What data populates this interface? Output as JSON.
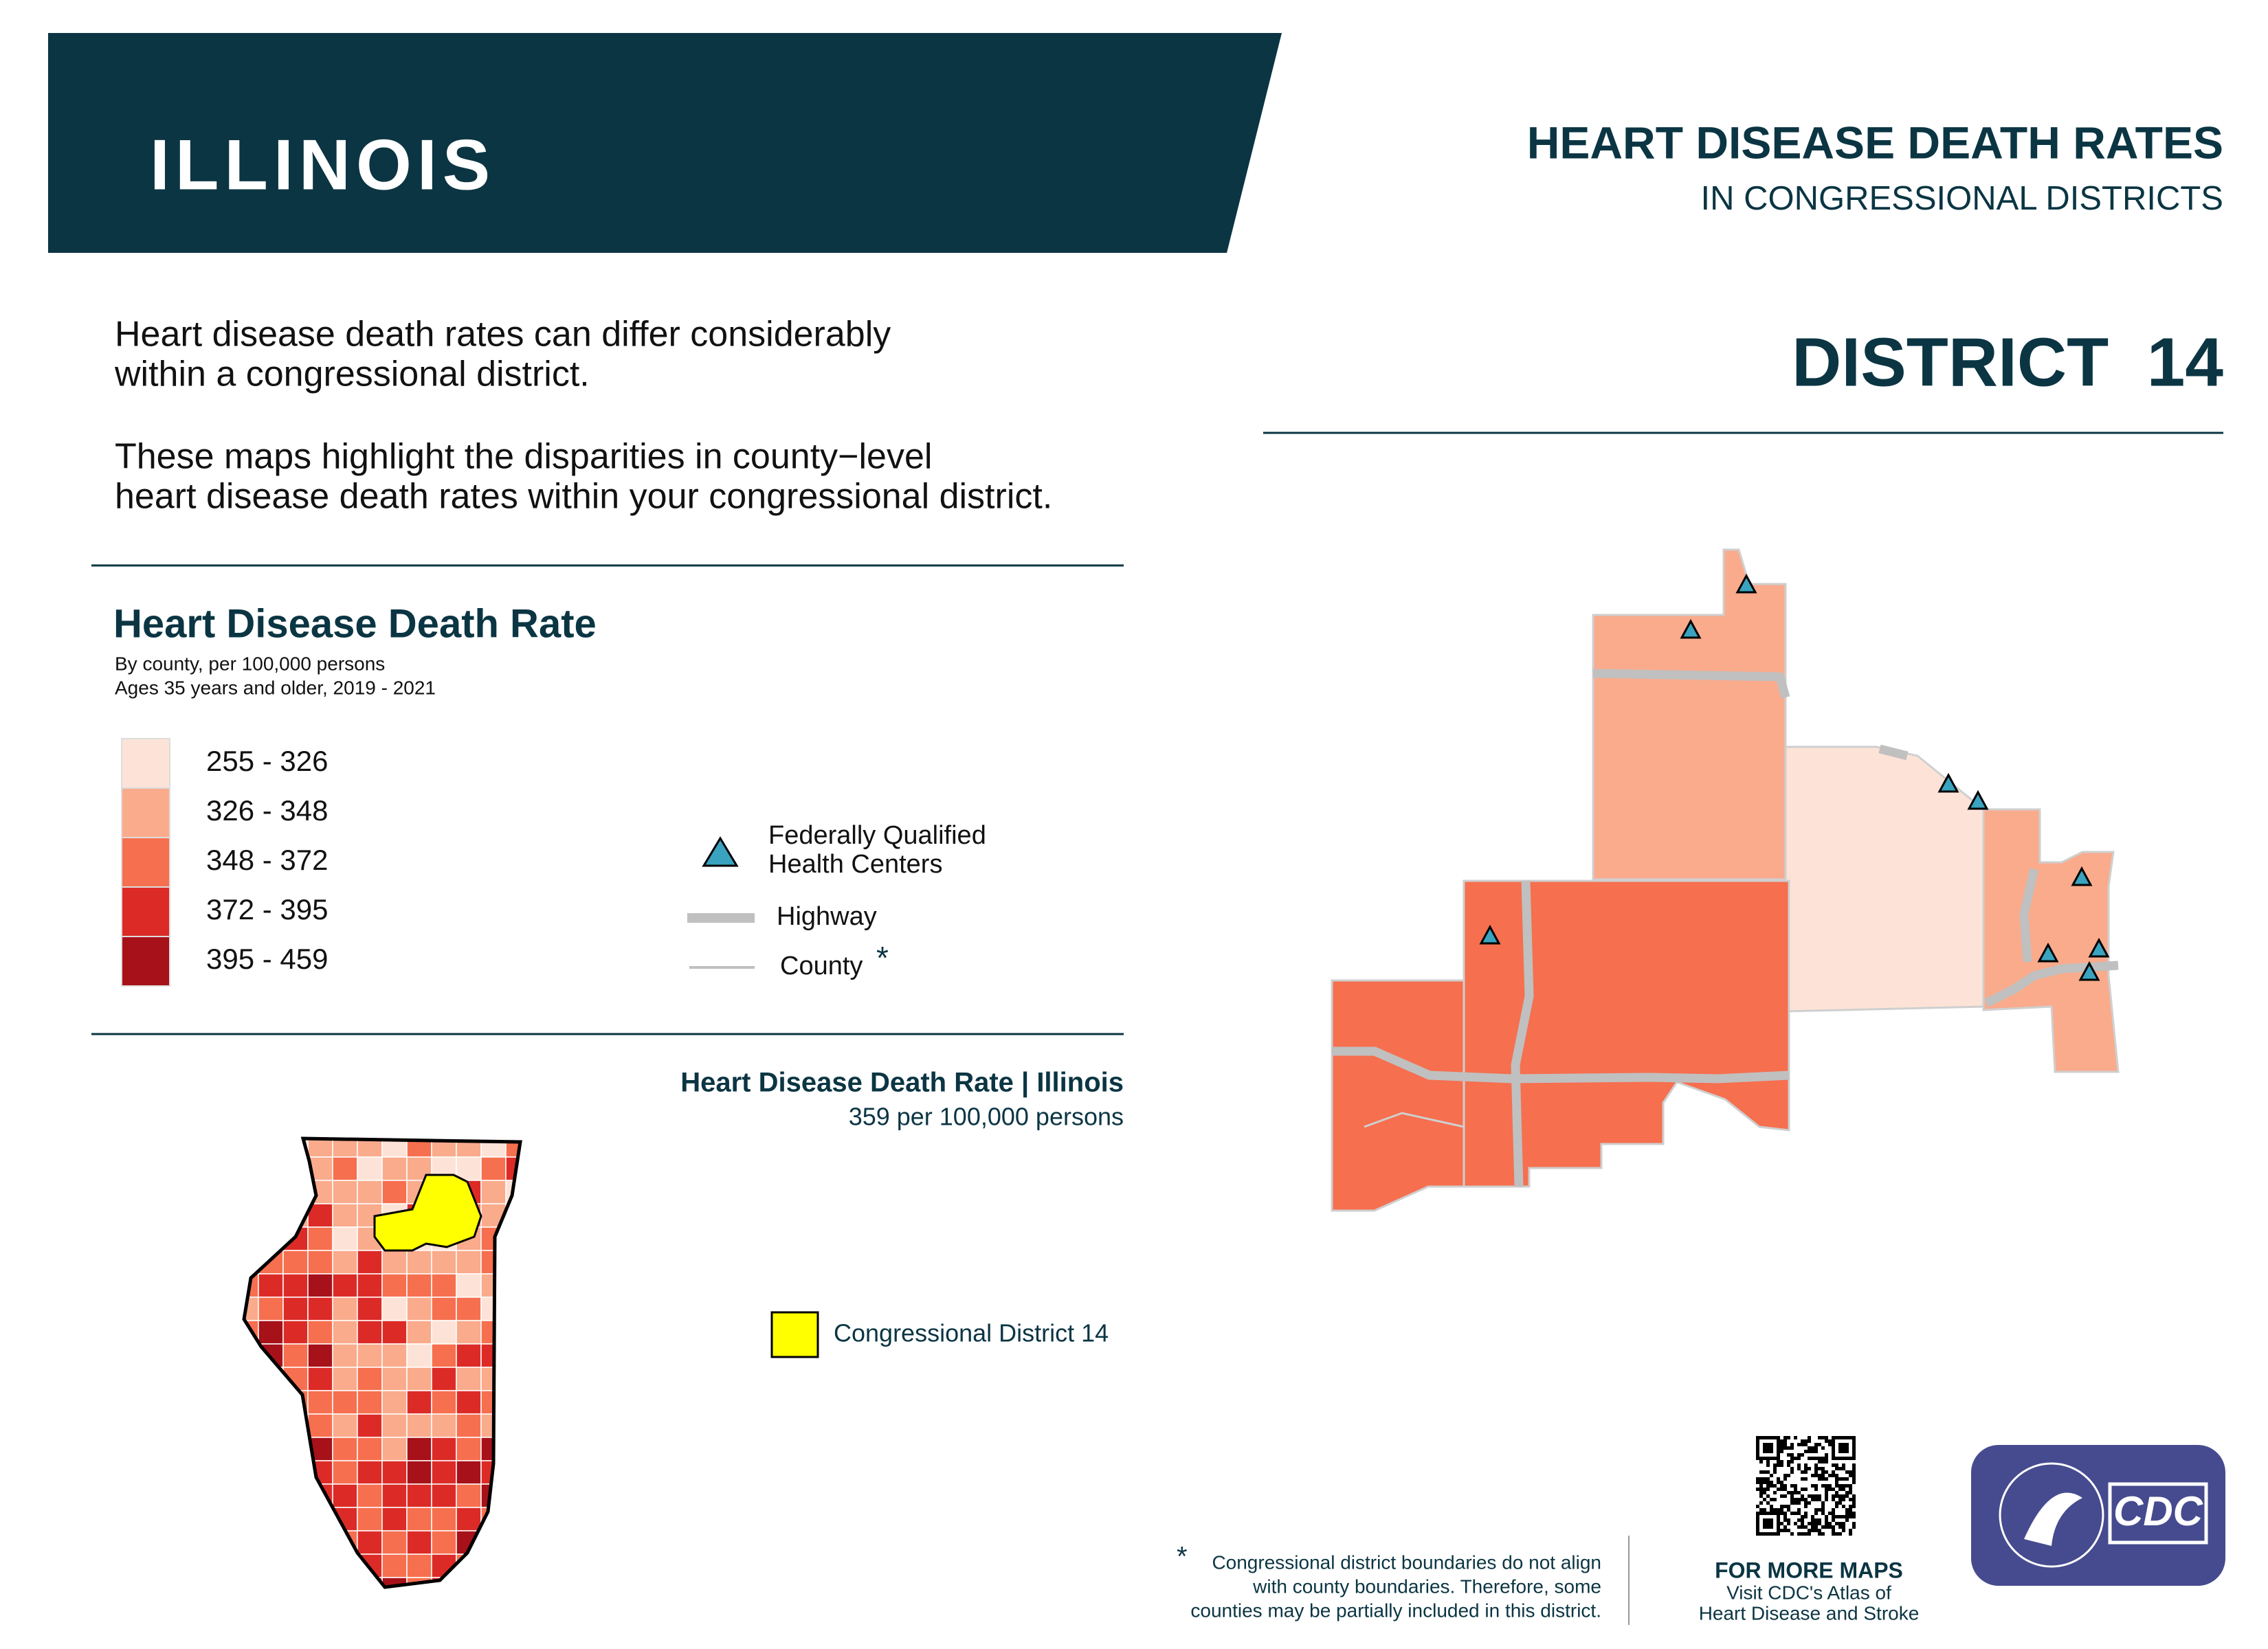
{
  "header": {
    "state": "ILLINOIS",
    "title": "HEART DISEASE DEATH RATES",
    "subtitle": "IN CONGRESSIONAL DISTRICTS",
    "district": "DISTRICT  14"
  },
  "intro": {
    "paragraphs": [
      [
        "Heart disease death rates can differ considerably",
        "within a congressional district."
      ],
      [
        "These maps highlight the disparities in county−level",
        "heart disease death rates within your congressional district."
      ]
    ]
  },
  "legend": {
    "title": "Heart Disease Death Rate",
    "notes": [
      "By county, per 100,000 persons",
      "Ages 35 years and older, 2019 - 2021"
    ],
    "classes": [
      {
        "label": "255 - 326",
        "color": "#fde3d7"
      },
      {
        "label": "326 - 348",
        "color": "#f9ab8c"
      },
      {
        "label": "348 - 372",
        "color": "#f66f4f"
      },
      {
        "label": "372 - 395",
        "color": "#dc2b27"
      },
      {
        "label": "395 - 459",
        "color": "#a71119"
      }
    ],
    "fqhc": [
      "Federally Qualified",
      "Health Centers"
    ],
    "highway": "Highway",
    "county": "County",
    "county_marker": "*"
  },
  "state_map": {
    "title": "Heart Disease Death Rate | Illinois",
    "rate": "359 per 100,000 persons",
    "district_label": "Congressional District 14"
  },
  "footnote": {
    "marker": "*",
    "lines": [
      "Congressional district boundaries do not align",
      "with county boundaries. Therefore, some",
      "counties may be partially included in this district."
    ]
  },
  "footer": {
    "more": "FOR MORE MAPS",
    "lines": [
      "Visit CDC's Atlas of",
      "Heart Disease and Stroke"
    ],
    "logo": "CDC"
  }
}
